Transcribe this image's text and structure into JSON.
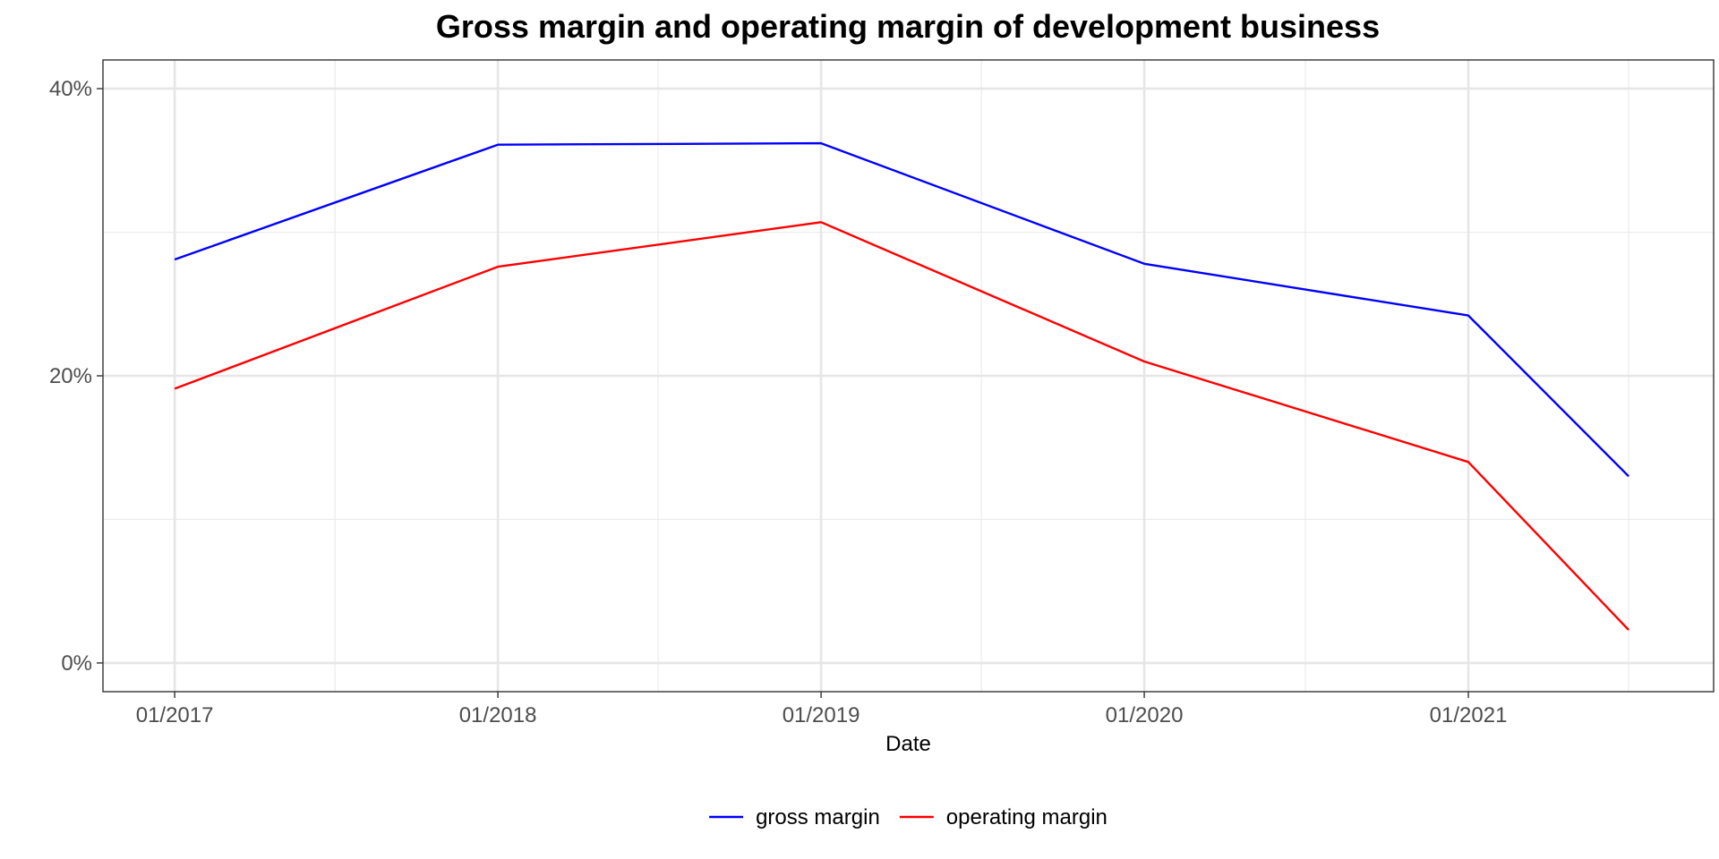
{
  "chart_data": {
    "type": "line",
    "title": "Gross margin and operating margin of development business",
    "xlabel": "Date",
    "ylabel": "",
    "x_ticks": [
      {
        "date": "2017-01-01",
        "label": "01/2017"
      },
      {
        "date": "2018-01-01",
        "label": "01/2018"
      },
      {
        "date": "2019-01-01",
        "label": "01/2019"
      },
      {
        "date": "2020-01-01",
        "label": "01/2020"
      },
      {
        "date": "2021-01-01",
        "label": "01/2021"
      }
    ],
    "x_minor_ticks": [
      "2017-07-01",
      "2018-07-01",
      "2019-07-01",
      "2020-07-01",
      "2021-07-01"
    ],
    "y_ticks": [
      {
        "value": 0,
        "label": "0%"
      },
      {
        "value": 0.2,
        "label": "20%"
      },
      {
        "value": 0.4,
        "label": "40%"
      }
    ],
    "y_minor_ticks": [
      0.1,
      0.3
    ],
    "xlim": [
      "2016-10-12",
      "2021-10-05"
    ],
    "ylim": [
      -0.02,
      0.42
    ],
    "grid": true,
    "legend_position": "bottom",
    "series": [
      {
        "name": "gross margin",
        "color": "#0000ff",
        "points": [
          {
            "x": "2017-01-01",
            "y": 0.281
          },
          {
            "x": "2018-01-01",
            "y": 0.361
          },
          {
            "x": "2019-01-01",
            "y": 0.362
          },
          {
            "x": "2020-01-01",
            "y": 0.278
          },
          {
            "x": "2021-01-01",
            "y": 0.242
          },
          {
            "x": "2021-07-01",
            "y": 0.13
          }
        ]
      },
      {
        "name": "operating margin",
        "color": "#ff0000",
        "points": [
          {
            "x": "2017-01-01",
            "y": 0.191
          },
          {
            "x": "2018-01-01",
            "y": 0.276
          },
          {
            "x": "2019-01-01",
            "y": 0.307
          },
          {
            "x": "2020-01-01",
            "y": 0.21
          },
          {
            "x": "2021-01-01",
            "y": 0.14
          },
          {
            "x": "2021-07-01",
            "y": 0.023
          }
        ]
      }
    ]
  }
}
